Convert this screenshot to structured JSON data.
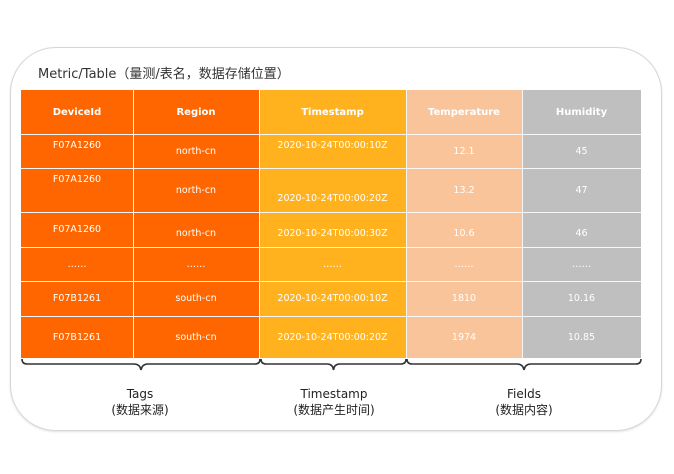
{
  "title": "Metric/Table（量测/表名，数据存储位置）",
  "colors": {
    "tags": "#FF6600",
    "timestamp": "#FFB21D",
    "temperature": "#F9C49A",
    "humidity": "#BFBFBF"
  },
  "columns": [
    {
      "header": "DeviceId",
      "group": "tags",
      "values": [
        "F07A1260",
        "F07A1260",
        "F07A1260",
        "……",
        "F07B1261",
        "F07B1261"
      ]
    },
    {
      "header": "Region",
      "group": "tags",
      "values": [
        "north-cn",
        "north-cn",
        "north-cn",
        "……",
        "south-cn",
        "south-cn"
      ]
    },
    {
      "header": "Timestamp",
      "group": "timestamp",
      "values": [
        "2020-10-24T00:00:10Z",
        "2020-10-24T00:00:20Z",
        "2020-10-24T00:00:30Z",
        "……",
        "2020-10-24T00:00:10Z",
        "2020-10-24T00:00:20Z"
      ]
    },
    {
      "header": "Temperature",
      "group": "temperature",
      "values": [
        "12.1",
        "13.2",
        "10.6",
        "……",
        "1810",
        "1974"
      ]
    },
    {
      "header": "Humidity",
      "group": "humidity",
      "values": [
        "45",
        "47",
        "46",
        "……",
        "10.16",
        "10.85"
      ]
    }
  ],
  "groups": {
    "tags": {
      "label": "Tags",
      "sub": "(数据来源)"
    },
    "timestamp": {
      "label": "Timestamp",
      "sub": "(数据产生时间)"
    },
    "fields": {
      "label": "Fields",
      "sub": "(数据内容)"
    }
  }
}
